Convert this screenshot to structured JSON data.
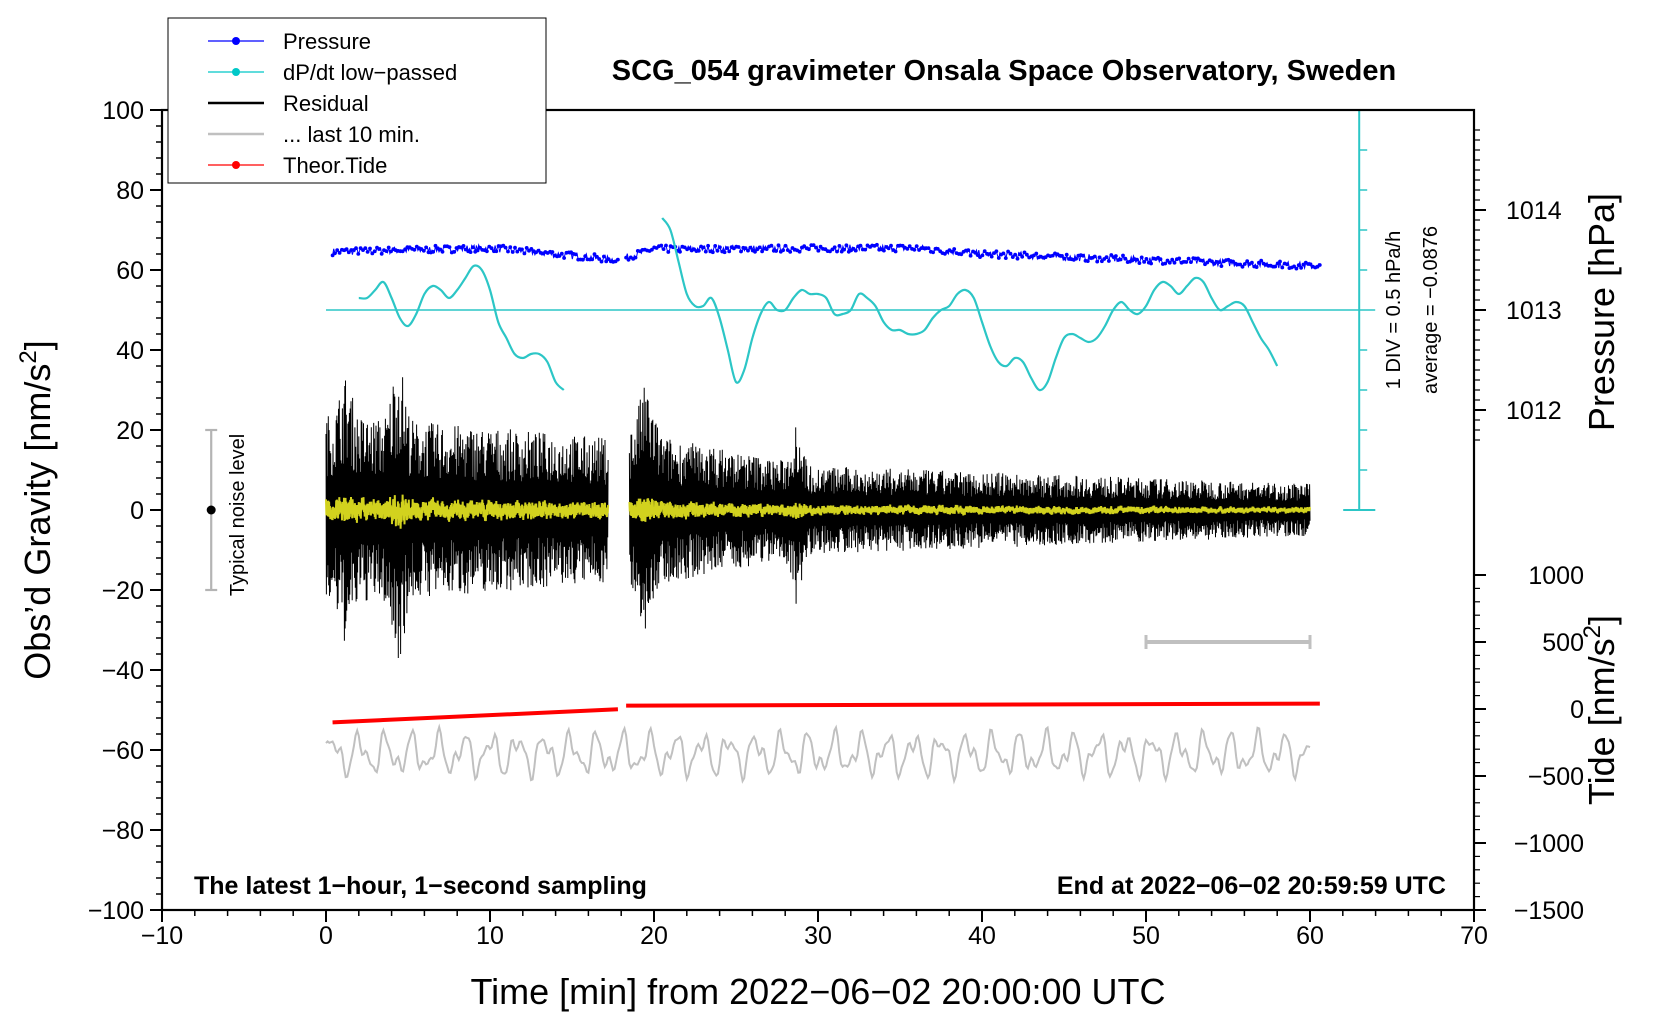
{
  "chart_data": {
    "type": "line",
    "title": "SCG_054 gravimeter Onsala Space Observatory, Sweden",
    "xlabel": "Time [min] from 2022−06−02 20:00:00 UTC",
    "ylabel_left": "Obs’d Gravity [nm/s",
    "ylabel_left_sup": "2",
    "ylabel_left_tail": "]",
    "ylabel_pressure": "Pressure [hPa]",
    "ylabel_tide": "Tide [nm/s",
    "ylabel_tide_sup": "2",
    "ylabel_tide_tail": "]",
    "xlim": [
      -10,
      70
    ],
    "ylim": [
      -100,
      100
    ],
    "x_ticks": [
      -10,
      0,
      10,
      20,
      30,
      40,
      50,
      60,
      70
    ],
    "x_tick_labels": [
      "−10",
      "0",
      "10",
      "20",
      "30",
      "40",
      "50",
      "60",
      "70"
    ],
    "y_ticks": [
      -100,
      -80,
      -60,
      -40,
      -20,
      0,
      20,
      40,
      60,
      80,
      100
    ],
    "y_tick_labels": [
      "−100",
      "−80",
      "−60",
      "−40",
      "−20",
      "0",
      "20",
      "40",
      "60",
      "80",
      "100"
    ],
    "pressure_axis": {
      "ticks": [
        1012,
        1013,
        1014
      ],
      "tick_labels": [
        "1012",
        "1013",
        "1014"
      ],
      "gravity_equiv": [
        25,
        50,
        75
      ]
    },
    "tide_axis": {
      "ticks": [
        -1500,
        -1000,
        -500,
        0,
        500,
        1000
      ],
      "tick_labels": [
        "−1500",
        "−1000",
        "−500",
        "0",
        "500",
        "1000"
      ]
    },
    "legend": {
      "position": "top-left",
      "entries": [
        {
          "label": "Pressure",
          "color": "#0000ff",
          "style": "line-dot"
        },
        {
          "label": "dP/dt low−passed",
          "color": "#00c8c8",
          "style": "line-dot"
        },
        {
          "label": "Residual",
          "color": "#000000",
          "style": "line"
        },
        {
          "label": "... last 10 min.",
          "color": "#c0c0c0",
          "style": "line"
        },
        {
          "label": "Theor.Tide",
          "color": "#ff0000",
          "style": "line-dot"
        }
      ]
    },
    "series": [
      {
        "name": "Pressure",
        "color": "#0000ff",
        "segments": [
          [
            0.4,
            17.8
          ],
          [
            18.3,
            60.6
          ]
        ],
        "values_hPa": [
          [
            0,
            1013.58
          ],
          [
            10,
            1013.62
          ],
          [
            17.8,
            1013.5
          ],
          [
            20,
            1013.61
          ],
          [
            36,
            1013.62
          ],
          [
            40,
            1013.56
          ],
          [
            60.5,
            1013.44
          ]
        ]
      },
      {
        "name": "dP/dt low−passed",
        "color": "#00c8c8",
        "x": [
          2,
          2.5,
          3,
          3.5,
          4,
          4.5,
          5,
          5.5,
          6,
          6.5,
          7,
          7.5,
          8,
          8.5,
          9,
          9.5,
          10,
          10.5,
          11,
          11.5,
          12,
          12.5,
          13,
          13.5,
          14,
          14.5
        ],
        "y": [
          53,
          53,
          55,
          57,
          53,
          48,
          46,
          49,
          54,
          56,
          55,
          53,
          55,
          58,
          61,
          60,
          55,
          47,
          43,
          39,
          38,
          39,
          39,
          37,
          32,
          30
        ]
      },
      {
        "name": "dP/dt low−passed (cont.)",
        "color": "#00c8c8",
        "x": [
          20.5,
          21,
          21.5,
          22,
          22.5,
          23,
          23.5,
          24,
          24.5,
          25,
          25.5,
          26,
          26.5,
          27,
          27.5,
          28,
          28.5,
          29,
          29.5,
          30,
          30.5,
          31,
          31.5,
          32,
          32.5,
          33,
          33.5,
          34,
          34.5,
          35,
          35.5,
          36,
          36.5,
          37,
          37.5,
          38,
          38.5,
          39,
          39.5,
          40,
          40.5,
          41,
          41.5,
          42,
          42.5,
          43,
          43.5,
          44,
          44.5,
          45,
          45.5,
          46,
          46.5,
          47,
          47.5,
          48,
          48.5,
          49,
          49.5,
          50,
          50.5,
          51,
          51.5,
          52,
          52.5,
          53,
          53.5,
          54,
          54.5,
          55,
          55.5,
          56,
          56.5,
          57,
          57.5,
          58
        ],
        "y": [
          73,
          70,
          62,
          54,
          51,
          51,
          53,
          48,
          40,
          32,
          35,
          43,
          49,
          52,
          50,
          50,
          53,
          55,
          54,
          54,
          53,
          49,
          49,
          50,
          54,
          53,
          51,
          47,
          45,
          45,
          44,
          44,
          45,
          48,
          50,
          51,
          54,
          55,
          53,
          47,
          41,
          37,
          36,
          38,
          37,
          33,
          30,
          32,
          38,
          43,
          44,
          43,
          42,
          43,
          46,
          50,
          52,
          50,
          49,
          51,
          55,
          57,
          56,
          54,
          56,
          58,
          57,
          53,
          50,
          51,
          52,
          51,
          47,
          43,
          40,
          36
        ]
      },
      {
        "name": "Residual",
        "color": "#000000",
        "segments": [
          [
            0,
            17.2
          ],
          [
            18.5,
            60
          ]
        ],
        "amplitude_peak_max": 40,
        "amplitude_peak_min": -37
      },
      {
        "name": "Residual (low-passed)",
        "color": "#d2d21e",
        "segments": [
          [
            0,
            17.2
          ],
          [
            18.5,
            60
          ]
        ]
      },
      {
        "name": "Theor.Tide",
        "color": "#ff0000",
        "x": [
          0.4,
          17.8,
          18.3,
          60.6
        ],
        "y_tide": [
          -100,
          -2,
          25,
          40
        ]
      },
      {
        "name": "... last 10 min.",
        "color": "#c0c0c0",
        "x_range": [
          0,
          60
        ],
        "y_range": [
          -68,
          -54
        ]
      }
    ],
    "noise_level": {
      "label": "Typical noise level",
      "x": -7,
      "y": 0,
      "low": -20,
      "high": 20
    },
    "dpdt_scale": {
      "label1": "1 DIV = 0.5 hPa/h",
      "label2": "average = −0.0876",
      "x": 63,
      "y_bottom": 0,
      "y_top": 100,
      "reference_y": 50
    },
    "last10_bar": {
      "x_from": 50,
      "x_to": 60,
      "y": -33
    },
    "annotation_left": "The latest 1−hour, 1−second sampling",
    "annotation_right": "End at 2022−06−02 20:59:59 UTC"
  }
}
